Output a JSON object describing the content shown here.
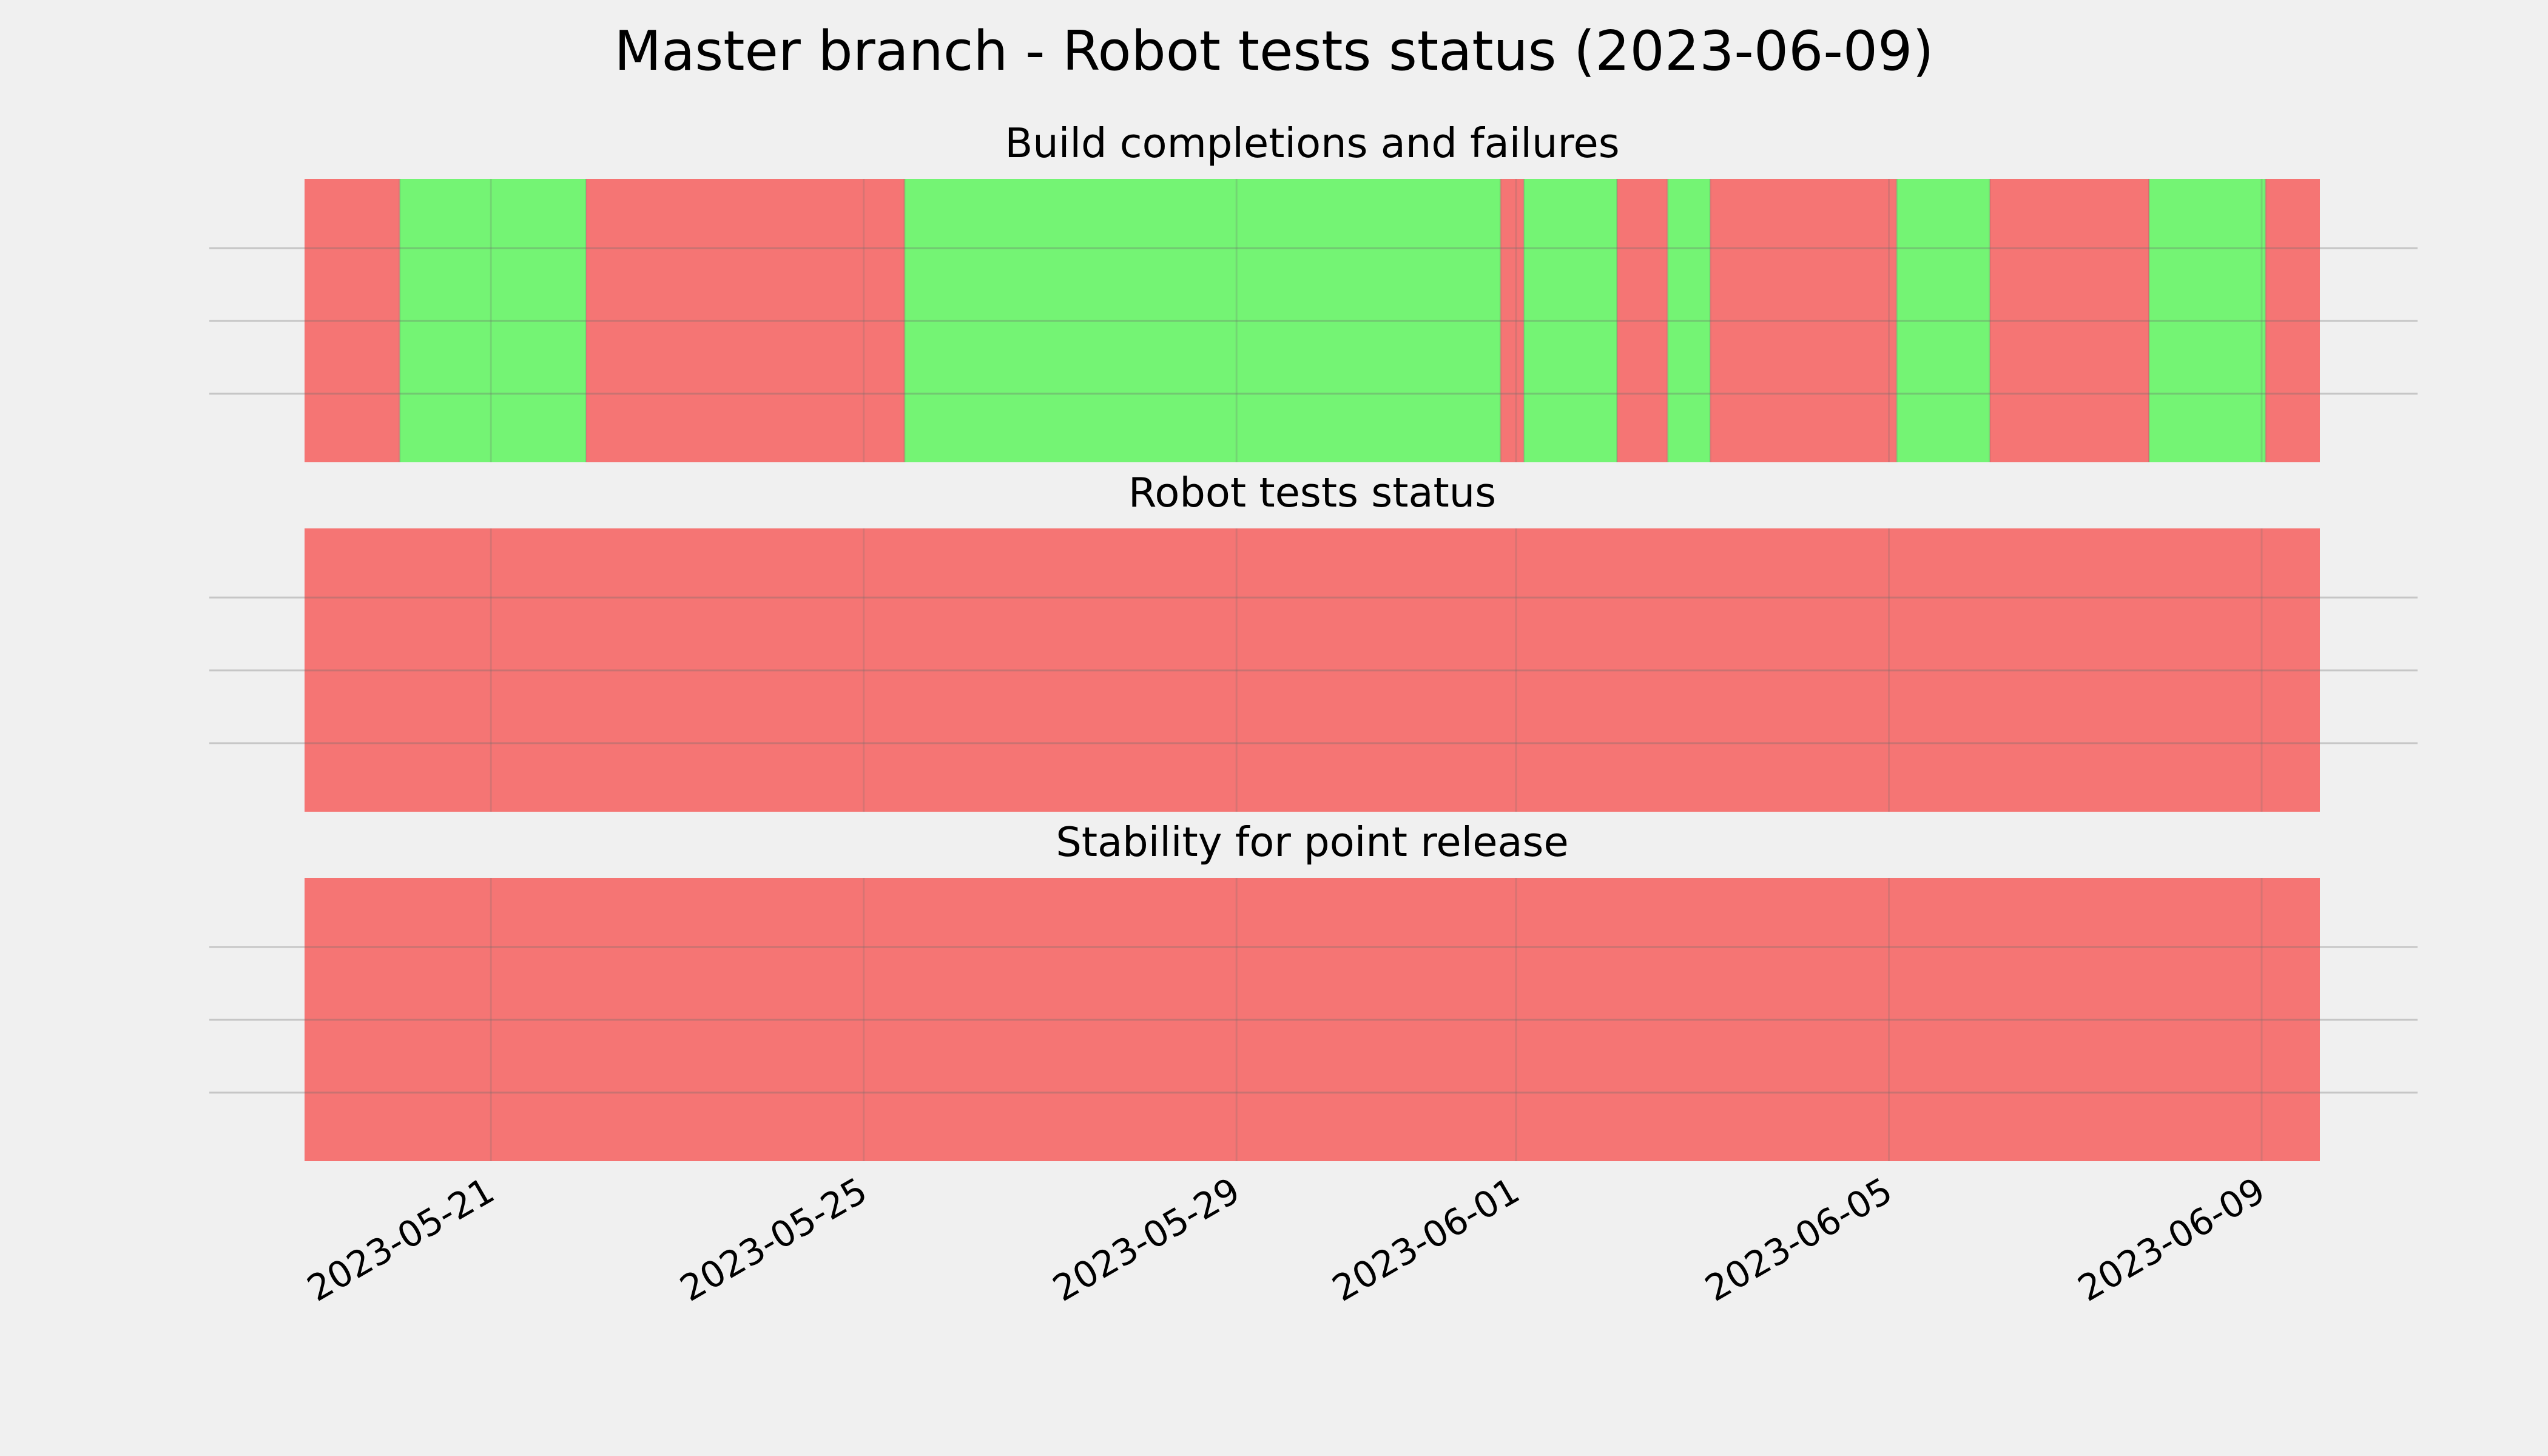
{
  "chart_data": {
    "type": "status-timeline",
    "title": "Master branch - Robot tests status (2023-06-09)",
    "colors": {
      "pass": "#74f474",
      "fail": "#f57574",
      "background": "#f0f0f0",
      "grid": "#cbcbcb"
    },
    "x_axis": {
      "type": "date",
      "range": [
        "2023-05-19T00:00",
        "2023-06-09T15:00"
      ],
      "ticks": [
        "2023-05-21",
        "2023-05-25",
        "2023-05-29",
        "2023-06-01",
        "2023-06-05",
        "2023-06-09"
      ],
      "grid": true
    },
    "panels": [
      {
        "title": "Build completions and failures",
        "segments": [
          {
            "start": "2023-05-19T00:00",
            "end": "2023-05-20T00:30",
            "status": "fail"
          },
          {
            "start": "2023-05-20T00:30",
            "end": "2023-05-22T00:30",
            "status": "pass"
          },
          {
            "start": "2023-05-22T00:30",
            "end": "2023-05-25T10:30",
            "status": "fail"
          },
          {
            "start": "2023-05-25T10:30",
            "end": "2023-05-31T20:00",
            "status": "pass"
          },
          {
            "start": "2023-05-31T20:00",
            "end": "2023-06-01T02:00",
            "status": "fail"
          },
          {
            "start": "2023-06-01T02:00",
            "end": "2023-06-02T02:00",
            "status": "pass"
          },
          {
            "start": "2023-06-02T02:00",
            "end": "2023-06-02T15:00",
            "status": "fail"
          },
          {
            "start": "2023-06-02T15:00",
            "end": "2023-06-03T02:00",
            "status": "pass"
          },
          {
            "start": "2023-06-03T02:00",
            "end": "2023-06-05T02:00",
            "status": "fail"
          },
          {
            "start": "2023-06-05T02:00",
            "end": "2023-06-06T02:00",
            "status": "pass"
          },
          {
            "start": "2023-06-06T02:00",
            "end": "2023-06-07T19:00",
            "status": "fail"
          },
          {
            "start": "2023-06-07T19:00",
            "end": "2023-06-09T01:00",
            "status": "pass"
          },
          {
            "start": "2023-06-09T01:00",
            "end": "2023-06-09T15:00",
            "status": "fail"
          }
        ]
      },
      {
        "title": "Robot tests status",
        "segments": [
          {
            "start": "2023-05-19T00:00",
            "end": "2023-06-09T15:00",
            "status": "fail"
          }
        ]
      },
      {
        "title": "Stability for point release",
        "segments": [
          {
            "start": "2023-05-19T00:00",
            "end": "2023-06-09T15:00",
            "status": "fail"
          }
        ]
      }
    ]
  }
}
